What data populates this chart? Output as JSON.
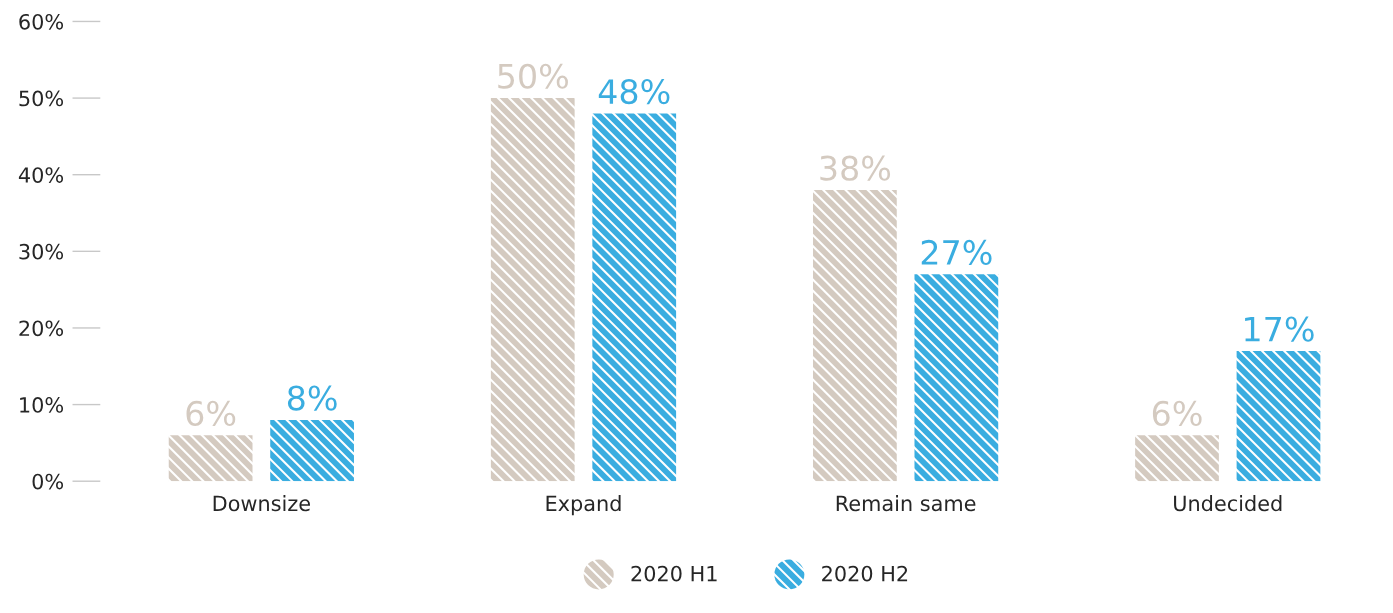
{
  "chart_data": {
    "type": "bar",
    "categories": [
      "Downsize",
      "Expand",
      "Remain same",
      "Undecided"
    ],
    "series": [
      {
        "name": "2020 H1",
        "color": "#d4cac0",
        "values": [
          6,
          50,
          38,
          6
        ],
        "value_labels": [
          "6%",
          "50%",
          "38%",
          "6%"
        ]
      },
      {
        "name": "2020 H2",
        "color": "#3aade0",
        "values": [
          8,
          48,
          27,
          17
        ],
        "value_labels": [
          "8%",
          "48%",
          "27%",
          "17%"
        ]
      }
    ],
    "ylim": [
      0,
      60
    ],
    "yticks": [
      {
        "value": 0,
        "label": "0%"
      },
      {
        "value": 10,
        "label": "10%"
      },
      {
        "value": 20,
        "label": "20%"
      },
      {
        "value": 30,
        "label": "30%"
      },
      {
        "value": 40,
        "label": "40%"
      },
      {
        "value": 50,
        "label": "50%"
      },
      {
        "value": 60,
        "label": "60%"
      }
    ],
    "grid": false,
    "legend": "bottom"
  }
}
